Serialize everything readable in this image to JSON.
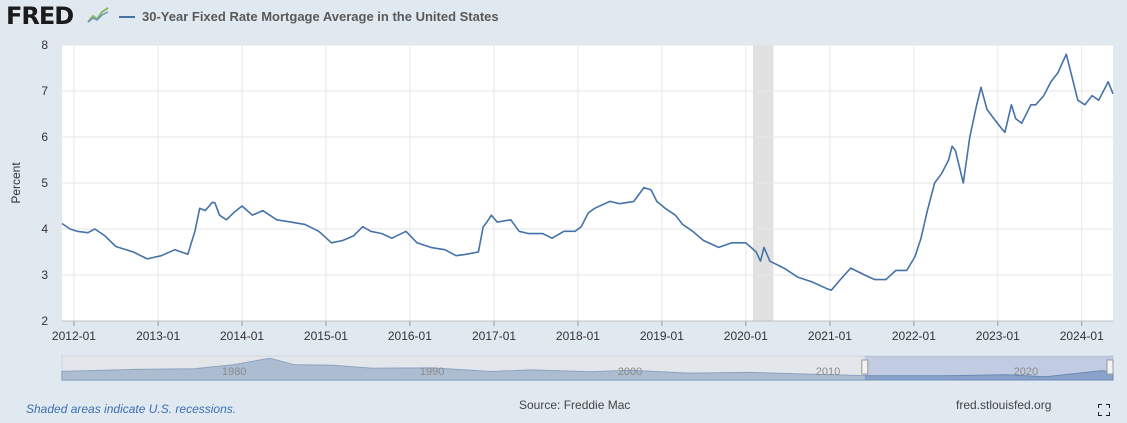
{
  "header": {
    "logo_text": "FRED",
    "logo_icon": "chart-line-icon",
    "expand_icon": "fullscreen-icon"
  },
  "chart_data": {
    "type": "line",
    "title": "",
    "xlabel": "",
    "ylabel": "Percent",
    "ylim": [
      2,
      8
    ],
    "xlim": [
      "2011-11-10",
      "2024-05-16"
    ],
    "y_ticks": [
      2,
      3,
      4,
      5,
      6,
      7,
      8
    ],
    "x_ticks": [
      "2012-01",
      "2013-01",
      "2014-01",
      "2015-01",
      "2016-01",
      "2017-01",
      "2018-01",
      "2019-01",
      "2020-01",
      "2021-01",
      "2022-01",
      "2023-01",
      "2024-01"
    ],
    "grid": true,
    "series": [
      {
        "name": "30-Year Fixed Rate Mortgage Average in the United States",
        "color": "#4572a7",
        "x": [
          "2011-11-10",
          "2011-12-15",
          "2012-01-15",
          "2012-03-01",
          "2012-04-01",
          "2012-05-15",
          "2012-07-01",
          "2012-09-15",
          "2012-11-15",
          "2013-01-15",
          "2013-03-15",
          "2013-05-10",
          "2013-06-10",
          "2013-07-01",
          "2013-07-25",
          "2013-08-25",
          "2013-09-05",
          "2013-09-25",
          "2013-10-25",
          "2013-11-25",
          "2014-01-01",
          "2014-02-15",
          "2014-04-01",
          "2014-06-01",
          "2014-08-01",
          "2014-10-01",
          "2014-12-01",
          "2015-01-25",
          "2015-03-15",
          "2015-05-01",
          "2015-06-10",
          "2015-07-15",
          "2015-09-01",
          "2015-10-15",
          "2015-12-15",
          "2016-02-01",
          "2016-04-01",
          "2016-06-01",
          "2016-07-20",
          "2016-09-01",
          "2016-10-25",
          "2016-11-15",
          "2016-12-01",
          "2016-12-20",
          "2017-01-15",
          "2017-03-15",
          "2017-04-20",
          "2017-06-01",
          "2017-08-01",
          "2017-09-10",
          "2017-11-01",
          "2017-12-20",
          "2018-01-15",
          "2018-02-15",
          "2018-03-15",
          "2018-05-20",
          "2018-07-01",
          "2018-09-01",
          "2018-10-15",
          "2018-11-15",
          "2018-12-10",
          "2019-01-15",
          "2019-03-01",
          "2019-04-01",
          "2019-05-15",
          "2019-07-01",
          "2019-09-05",
          "2019-11-01",
          "2020-01-01",
          "2020-02-15",
          "2020-03-05",
          "2020-03-20",
          "2020-04-15",
          "2020-06-15",
          "2020-08-15",
          "2020-10-15",
          "2020-12-20",
          "2021-01-07",
          "2021-02-15",
          "2021-04-01",
          "2021-06-01",
          "2021-07-15",
          "2021-09-01",
          "2021-10-15",
          "2021-12-01",
          "2022-01-06",
          "2022-02-01",
          "2022-03-01",
          "2022-04-01",
          "2022-05-01",
          "2022-06-01",
          "2022-06-16",
          "2022-07-01",
          "2022-08-04",
          "2022-09-01",
          "2022-10-01",
          "2022-10-20",
          "2022-11-15",
          "2022-12-15",
          "2023-01-15",
          "2023-02-01",
          "2023-03-01",
          "2023-03-20",
          "2023-04-15",
          "2023-05-25",
          "2023-06-15",
          "2023-07-20",
          "2023-08-20",
          "2023-09-20",
          "2023-10-26",
          "2023-11-15",
          "2023-12-15",
          "2024-01-15",
          "2024-02-15",
          "2024-03-15",
          "2024-04-25",
          "2024-05-16"
        ],
        "values": [
          4.12,
          4.0,
          3.95,
          3.92,
          4.0,
          3.85,
          3.62,
          3.5,
          3.35,
          3.42,
          3.55,
          3.45,
          3.95,
          4.45,
          4.4,
          4.58,
          4.57,
          4.3,
          4.2,
          4.35,
          4.5,
          4.3,
          4.4,
          4.2,
          4.15,
          4.1,
          3.95,
          3.7,
          3.75,
          3.85,
          4.05,
          3.95,
          3.9,
          3.8,
          3.95,
          3.7,
          3.6,
          3.55,
          3.42,
          3.45,
          3.5,
          4.05,
          4.15,
          4.3,
          4.15,
          4.2,
          3.95,
          3.9,
          3.9,
          3.8,
          3.95,
          3.95,
          4.05,
          4.35,
          4.45,
          4.6,
          4.55,
          4.6,
          4.9,
          4.85,
          4.6,
          4.45,
          4.3,
          4.1,
          3.95,
          3.75,
          3.6,
          3.7,
          3.7,
          3.5,
          3.3,
          3.6,
          3.3,
          3.15,
          2.95,
          2.85,
          2.7,
          2.67,
          2.9,
          3.15,
          3.0,
          2.9,
          2.9,
          3.1,
          3.1,
          3.4,
          3.8,
          4.4,
          5.0,
          5.2,
          5.5,
          5.8,
          5.7,
          5.0,
          6.0,
          6.7,
          7.08,
          6.6,
          6.4,
          6.2,
          6.1,
          6.7,
          6.4,
          6.3,
          6.7,
          6.7,
          6.9,
          7.2,
          7.4,
          7.8,
          7.4,
          6.8,
          6.7,
          6.9,
          6.8,
          7.2,
          6.94
        ]
      }
    ],
    "recessions": [
      [
        "2020-02-01",
        "2020-04-30"
      ]
    ]
  },
  "navigator": {
    "labels": [
      "1980",
      "1990",
      "2000",
      "2010",
      "2020"
    ]
  },
  "footer": {
    "note": "Shaded areas indicate U.S. recessions.",
    "source": "Source: Freddie Mac",
    "site": "fred.stlouisfed.org"
  }
}
